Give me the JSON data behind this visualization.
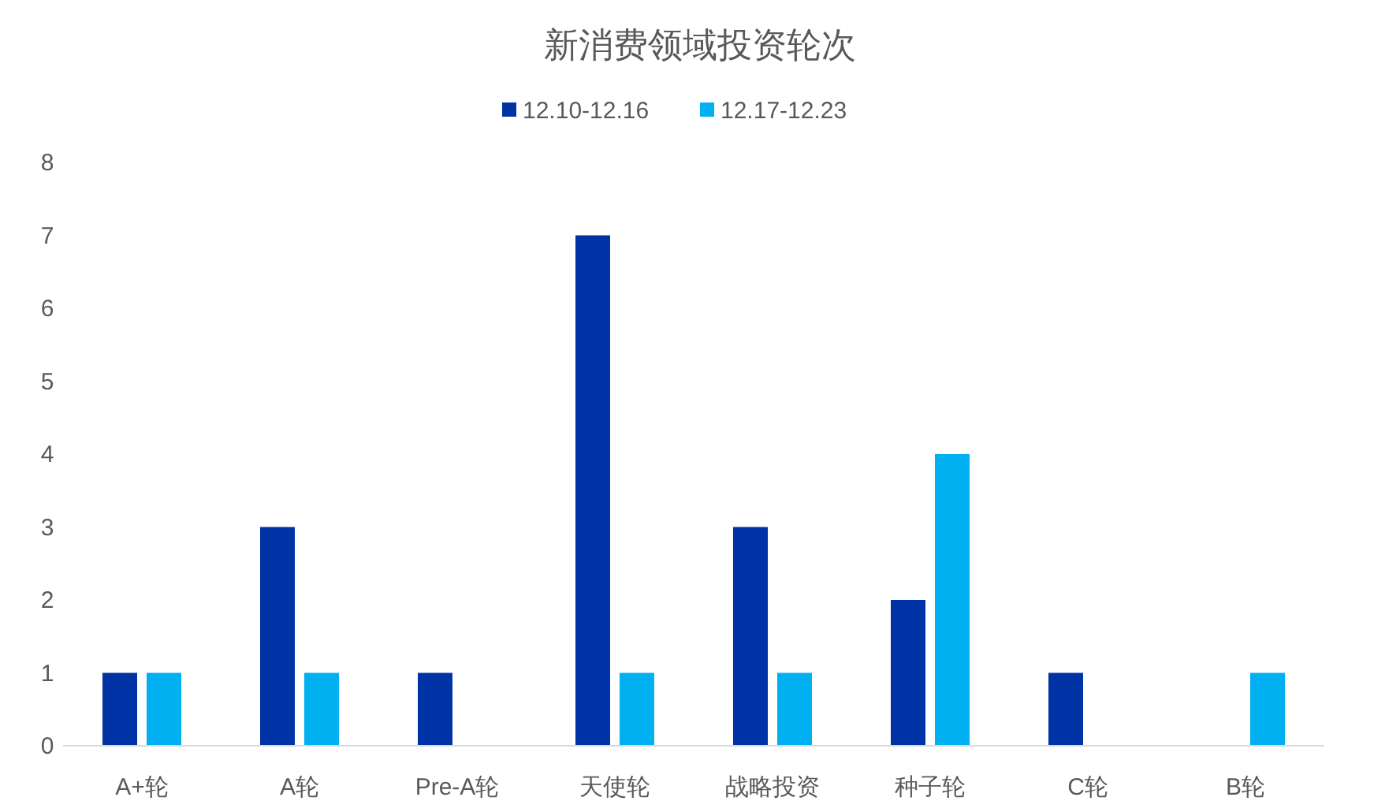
{
  "chart_data": {
    "type": "bar",
    "title": "新消费领域投资轮次",
    "categories": [
      "A+轮",
      "A轮",
      "Pre-A轮",
      "天使轮",
      "战略投资",
      "种子轮",
      "C轮",
      "B轮"
    ],
    "series": [
      {
        "name": "12.10-12.16",
        "color": "#0033a6",
        "values": [
          1,
          3,
          1,
          7,
          3,
          2,
          1,
          null
        ]
      },
      {
        "name": "12.17-12.23",
        "color": "#00b0f0",
        "values": [
          1,
          1,
          null,
          1,
          1,
          4,
          null,
          1
        ]
      }
    ],
    "ylim": [
      0,
      8
    ],
    "yticks": [
      0,
      1,
      2,
      3,
      4,
      5,
      6,
      7,
      8
    ],
    "grid": false,
    "legend": "top"
  }
}
